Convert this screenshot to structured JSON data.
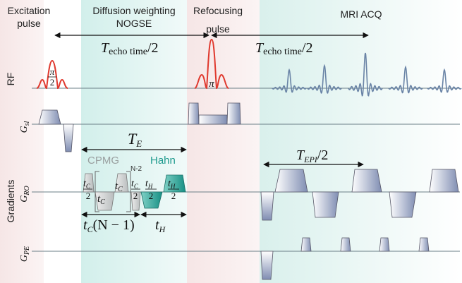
{
  "header": {
    "excitation": [
      "Excitation",
      "pulse"
    ],
    "diffusion": [
      "Diffusion weighting",
      "NOGSE"
    ],
    "refocusing": [
      "Refocusing",
      "pulse"
    ],
    "acq": "MRI ACQ"
  },
  "labels": {
    "rf": "RF",
    "gradients": "Gradients",
    "gsl_main": "G",
    "gsl_sub": "sl",
    "gro_main": "G",
    "gro_sub": "RO",
    "gpe_main": "G",
    "gpe_sub": "PE"
  },
  "annotations": {
    "pi_over_2_num": "π",
    "pi_over_2_den": "2",
    "pi": "π",
    "techo_T": "T",
    "techo_sub": "echo time",
    "techo_div": "/2",
    "te_T": "T",
    "te_sub": "E",
    "cpmg": "CPMG",
    "hahn": "Hahn",
    "n_minus_2": "N-2",
    "tc": "t",
    "tc_sub": "C",
    "th": "t",
    "th_sub": "H",
    "half": "2",
    "tc_n1_t": "t",
    "tc_n1_sub": "C",
    "tc_n1_rest": "(N − 1)",
    "tepi_T": "T",
    "tepi_sub": "EPI",
    "tepi_div": "/2"
  },
  "colors": {
    "rf_pulse": "#e03a2f",
    "acq_signal": "#6a84a6",
    "gradient_fill": "#9aa6c2",
    "cpmg_fill": "#c9cccc",
    "hahn_fill": "#2aa89a",
    "excitation_band": "#f3dede",
    "diffusion_band": "#d6f1ee",
    "acq_band": "#e3f4f1"
  }
}
